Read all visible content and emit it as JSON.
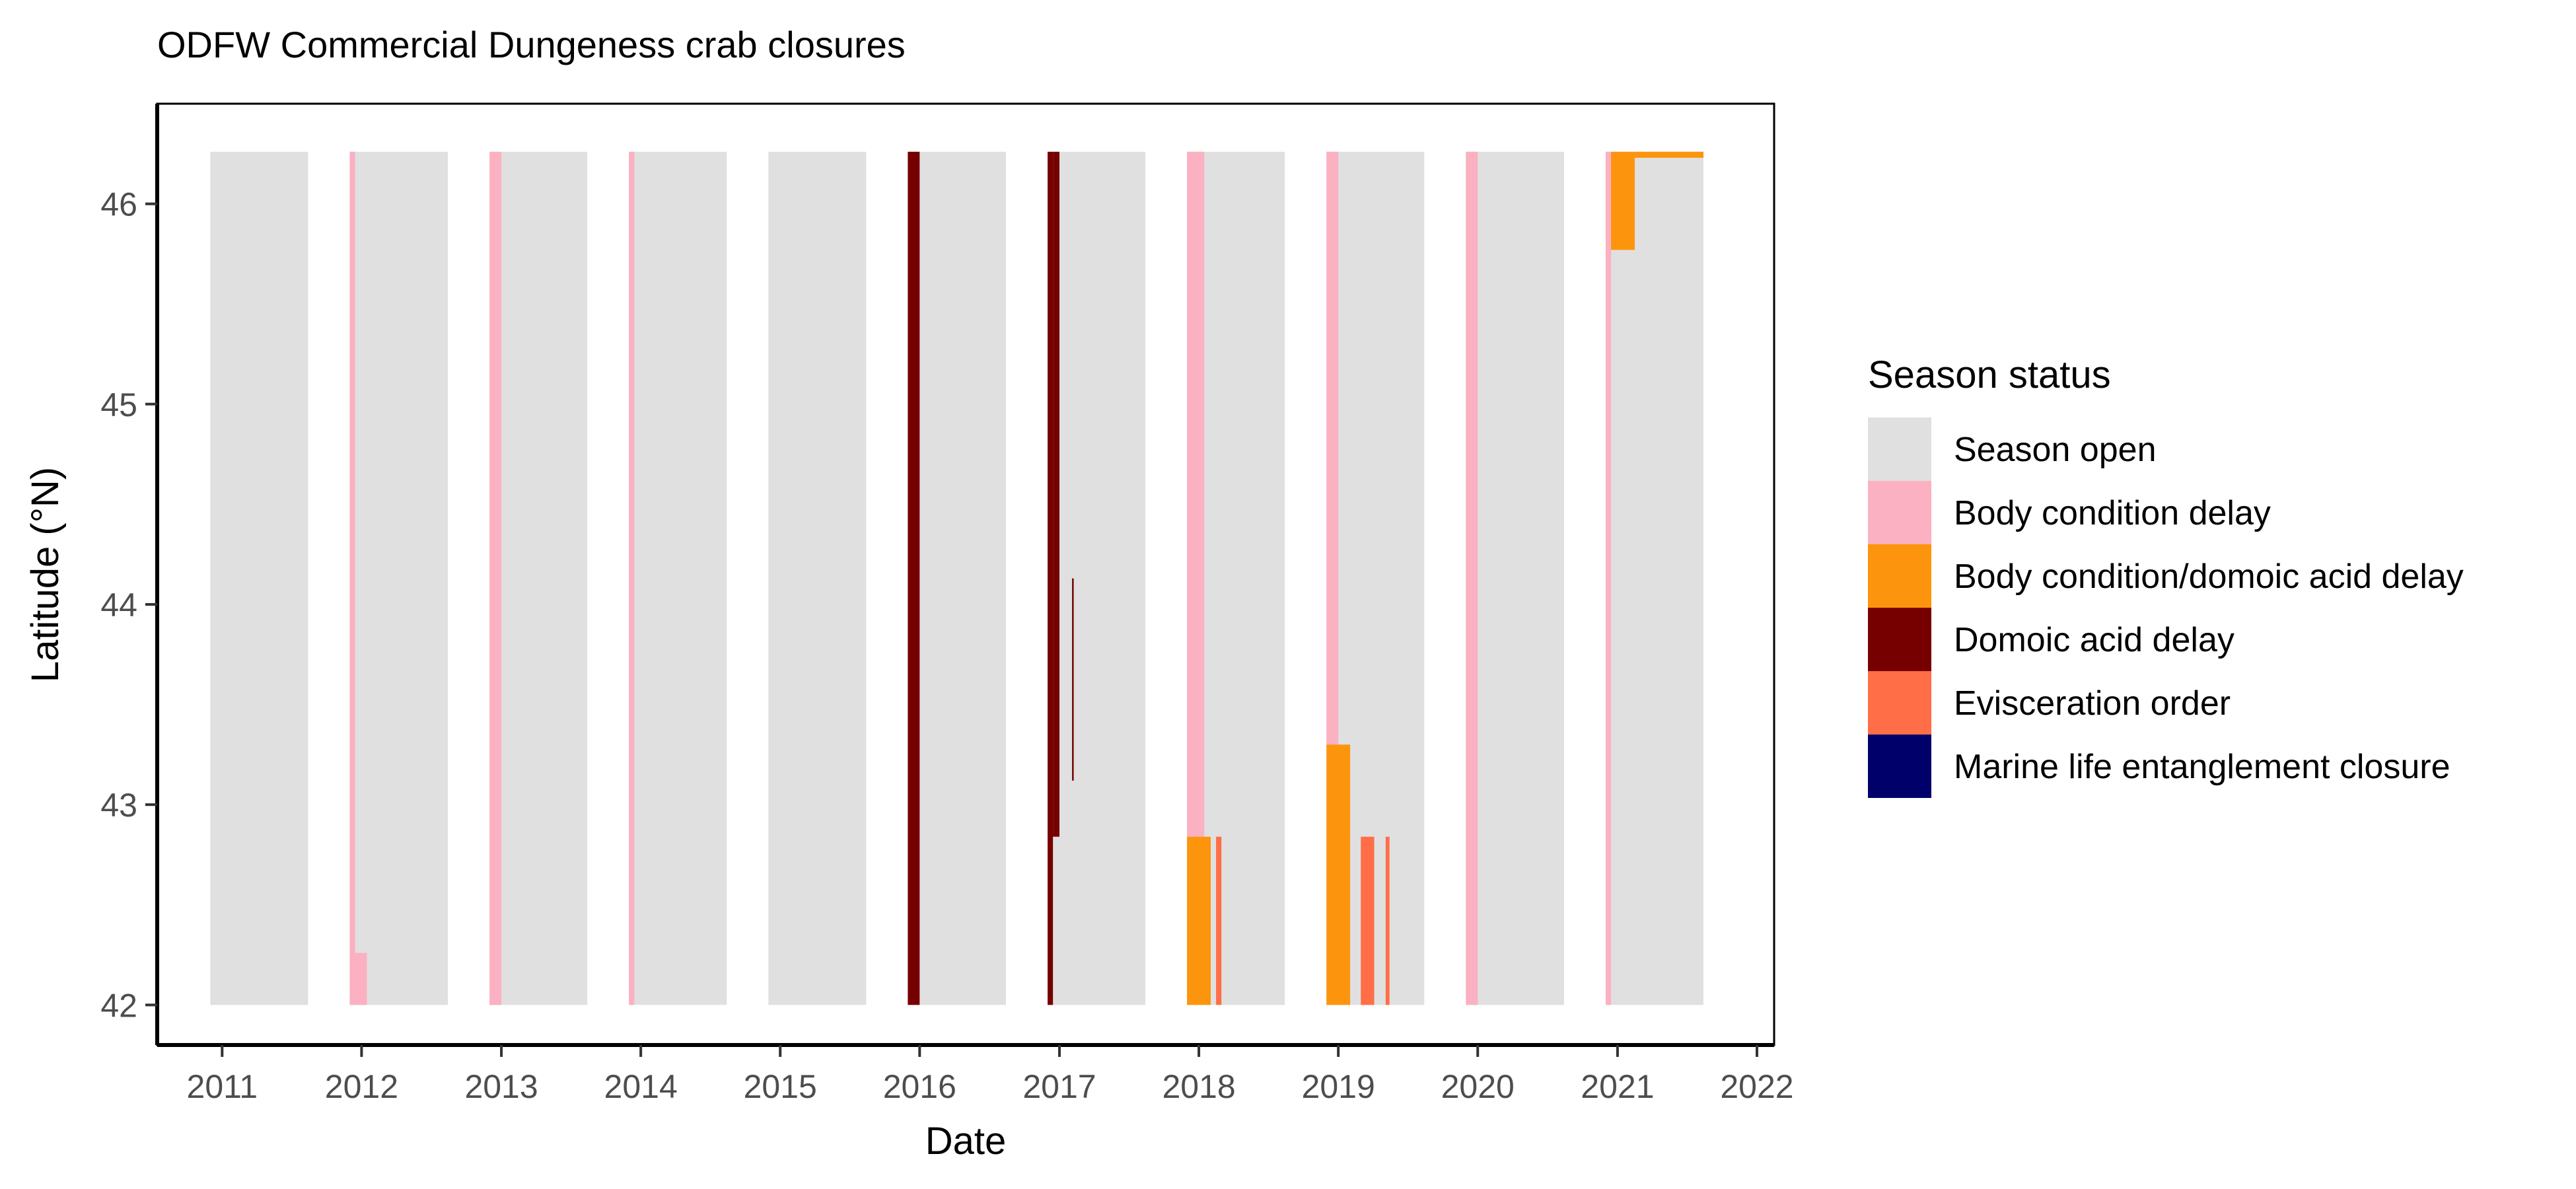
{
  "chart_data": {
    "type": "heatmap",
    "title": "ODFW Commercial Dungeness crab closures",
    "xlabel": "Date",
    "ylabel": "Latitude (°N)",
    "xlim": [
      "2010-07-15",
      "2022-02-15"
    ],
    "ylim": [
      41.8,
      46.5
    ],
    "x_ticks": [
      "2011",
      "2012",
      "2013",
      "2014",
      "2015",
      "2016",
      "2017",
      "2018",
      "2019",
      "2020",
      "2021",
      "2022"
    ],
    "y_ticks": [
      "42",
      "43",
      "44",
      "45",
      "46"
    ],
    "legend": {
      "title": "Season status",
      "position": "right",
      "entries": [
        {
          "label": "Season open",
          "color": "#E0E0E0"
        },
        {
          "label": "Body condition delay",
          "color": "#FBB1C2"
        },
        {
          "label": "Body condition/domoic acid delay",
          "color": "#FC950D"
        },
        {
          "label": "Domoic acid delay",
          "color": "#760000"
        },
        {
          "label": "Evisceration order",
          "color": "#FF6E47"
        },
        {
          "label": "Marine life entanglement closure",
          "color": "#00006B"
        }
      ]
    },
    "segments": [
      {
        "status": "Season open",
        "x0": "2010-12-01",
        "x1": "2011-08-14",
        "y0": 42.0,
        "y1": 46.26
      },
      {
        "status": "Season open",
        "x0": "2011-12-01",
        "x1": "2012-08-14",
        "y0": 42.0,
        "y1": 46.26
      },
      {
        "status": "Body condition delay",
        "x0": "2011-12-01",
        "x1": "2011-12-15",
        "y0": 42.26,
        "y1": 46.26
      },
      {
        "status": "Body condition delay",
        "x0": "2011-12-01",
        "x1": "2012-01-15",
        "y0": 42.0,
        "y1": 42.26
      },
      {
        "status": "Season open",
        "x0": "2012-12-01",
        "x1": "2013-08-14",
        "y0": 42.0,
        "y1": 46.26
      },
      {
        "status": "Body condition delay",
        "x0": "2012-12-01",
        "x1": "2013-01-01",
        "y0": 42.0,
        "y1": 46.26
      },
      {
        "status": "Season open",
        "x0": "2013-12-01",
        "x1": "2014-08-14",
        "y0": 42.0,
        "y1": 46.26
      },
      {
        "status": "Body condition delay",
        "x0": "2013-12-01",
        "x1": "2013-12-15",
        "y0": 42.0,
        "y1": 46.26
      },
      {
        "status": "Season open",
        "x0": "2014-12-01",
        "x1": "2015-08-14",
        "y0": 42.0,
        "y1": 46.26
      },
      {
        "status": "Season open",
        "x0": "2015-12-01",
        "x1": "2016-08-14",
        "y0": 42.0,
        "y1": 46.26
      },
      {
        "status": "Domoic acid delay",
        "x0": "2015-12-01",
        "x1": "2016-01-01",
        "y0": 42.0,
        "y1": 46.26
      },
      {
        "status": "Season open",
        "x0": "2016-12-01",
        "x1": "2017-08-14",
        "y0": 42.0,
        "y1": 46.26
      },
      {
        "status": "Domoic acid delay",
        "x0": "2016-12-01",
        "x1": "2016-12-15",
        "y0": 42.0,
        "y1": 46.26
      },
      {
        "status": "Domoic acid delay",
        "x0": "2016-12-15",
        "x1": "2017-01-01",
        "y0": 42.84,
        "y1": 46.26
      },
      {
        "status": "Domoic acid delay",
        "x0": "2017-02-03",
        "x1": "2017-02-07",
        "y0": 43.12,
        "y1": 44.13
      },
      {
        "status": "Season open",
        "x0": "2017-12-01",
        "x1": "2018-08-14",
        "y0": 42.0,
        "y1": 46.26
      },
      {
        "status": "Body condition delay",
        "x0": "2017-12-01",
        "x1": "2018-01-15",
        "y0": 42.84,
        "y1": 46.26
      },
      {
        "status": "Body condition/domoic acid delay",
        "x0": "2017-12-01",
        "x1": "2018-02-01",
        "y0": 42.0,
        "y1": 42.84
      },
      {
        "status": "Evisceration order",
        "x0": "2018-02-15",
        "x1": "2018-03-01",
        "y0": 42.0,
        "y1": 42.84
      },
      {
        "status": "Season open",
        "x0": "2018-12-01",
        "x1": "2019-08-14",
        "y0": 42.0,
        "y1": 46.26
      },
      {
        "status": "Body condition delay",
        "x0": "2018-12-01",
        "x1": "2019-01-01",
        "y0": 43.3,
        "y1": 46.26
      },
      {
        "status": "Body condition/domoic acid delay",
        "x0": "2018-12-01",
        "x1": "2019-02-01",
        "y0": 42.0,
        "y1": 43.3
      },
      {
        "status": "Evisceration order",
        "x0": "2019-03-01",
        "x1": "2019-04-05",
        "y0": 42.0,
        "y1": 42.84
      },
      {
        "status": "Evisceration order",
        "x0": "2019-05-05",
        "x1": "2019-05-15",
        "y0": 42.0,
        "y1": 42.84
      },
      {
        "status": "Season open",
        "x0": "2019-12-01",
        "x1": "2020-08-14",
        "y0": 42.0,
        "y1": 46.26
      },
      {
        "status": "Body condition delay",
        "x0": "2019-12-01",
        "x1": "2020-01-01",
        "y0": 42.0,
        "y1": 46.26
      },
      {
        "status": "Season open",
        "x0": "2020-12-01",
        "x1": "2021-08-14",
        "y0": 42.0,
        "y1": 46.26
      },
      {
        "status": "Body condition delay",
        "x0": "2020-12-01",
        "x1": "2020-12-15",
        "y0": 42.0,
        "y1": 46.26
      },
      {
        "status": "Body condition/domoic acid delay",
        "x0": "2020-12-15",
        "x1": "2021-02-15",
        "y0": 45.77,
        "y1": 46.26
      },
      {
        "status": "Body condition/domoic acid delay",
        "x0": "2021-02-15",
        "x1": "2021-08-14",
        "y0": 46.23,
        "y1": 46.26
      }
    ]
  }
}
